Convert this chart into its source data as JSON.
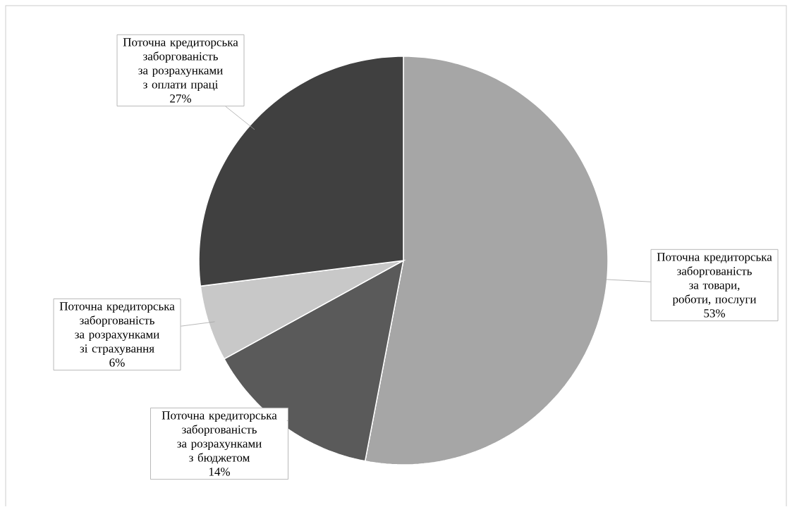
{
  "chart_data": {
    "type": "pie",
    "categories": [
      "Поточна кредиторська заборгованість за товари, роботи, послуги",
      "Поточна кредиторська заборгованість за розрахунками з бюджетом",
      "Поточна кредиторська заборгованість за розрахунками зі страхування",
      "Поточна кредиторська заборгованість за розрахунками з оплати праці"
    ],
    "values": [
      53,
      14,
      6,
      27
    ],
    "value_labels": [
      "53%",
      "14%",
      "6%",
      "27%"
    ],
    "colors": [
      "#a6a6a6",
      "#5a5a5a",
      "#c8c8c8",
      "#404040"
    ]
  }
}
